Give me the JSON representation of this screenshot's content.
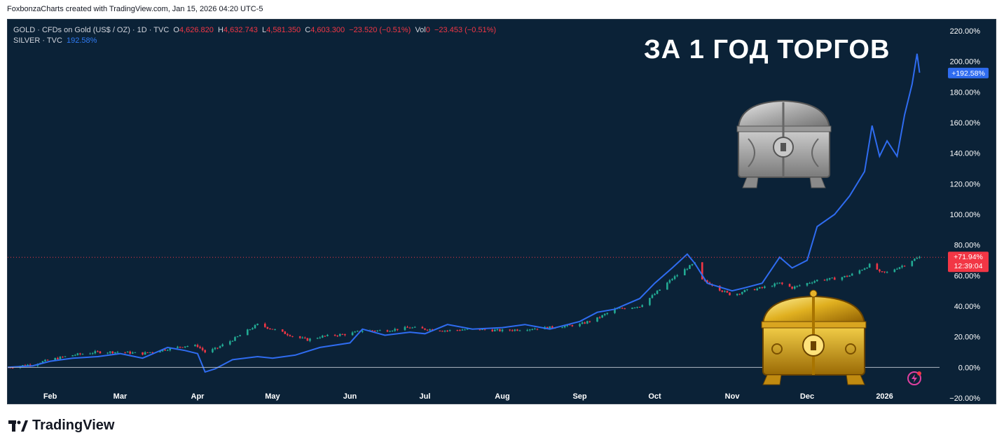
{
  "attribution": "FoxbonzaCharts created with TradingView.com, Jan 15, 2026 04:20 UTC-5",
  "legend": {
    "gold_symbol": "GOLD · CFDs on Gold (US$ / OZ) · 1D · TVC",
    "o_label": "O",
    "o_value": "4,626.820",
    "h_label": "H",
    "h_value": "4,632.743",
    "l_label": "L",
    "l_value": "4,581.350",
    "c_label": "C",
    "c_value": "4,603.300",
    "change": "−23.520 (−0.51%)",
    "vol_label": "Vol",
    "vol_value": "0",
    "vol_change": "−23.453 (−0.51%)",
    "silver_symbol": "SILVER · TVC",
    "silver_value": "192.58%"
  },
  "headline": "ЗА 1 ГОД ТОРГОВ",
  "brand": "TradingView",
  "colors": {
    "background": "#0b2237",
    "silver_line": "#2f6cf0",
    "candle_up": "#22ab94",
    "candle_down": "#f23645",
    "axis_text": "#ffffff"
  },
  "price_tags": {
    "silver": "+192.58%",
    "gold_pct": "+71.94%",
    "gold_time": "12:39:04"
  },
  "icons": [
    "silver-chest-icon",
    "gold-chest-icon",
    "lightning-icon",
    "tradingview-logo-icon"
  ],
  "chart_data": {
    "type": "line",
    "y_axis_ticks": [
      "220.00%",
      "200.00%",
      "180.00%",
      "160.00%",
      "140.00%",
      "120.00%",
      "100.00%",
      "80.00%",
      "60.00%",
      "40.00%",
      "20.00%",
      "0.00%",
      "−20.00%"
    ],
    "ylim": [
      -20,
      225
    ],
    "x_tick_labels": [
      "Feb",
      "Mar",
      "Apr",
      "May",
      "Jun",
      "Jul",
      "Aug",
      "Sep",
      "Oct",
      "Nov",
      "Dec",
      "2026"
    ],
    "x_tick_dates": [
      "2025-02-01",
      "2025-03-01",
      "2025-04-01",
      "2025-05-01",
      "2025-06-01",
      "2025-07-01",
      "2025-08-01",
      "2025-09-01",
      "2025-10-01",
      "2025-11-01",
      "2025-12-01",
      "2026-01-01"
    ],
    "grid": false,
    "series": [
      {
        "name": "SILVER · TVC",
        "style": "line",
        "x": [
          "2025-01-15",
          "2025-01-25",
          "2025-02-01",
          "2025-02-10",
          "2025-02-20",
          "2025-03-01",
          "2025-03-10",
          "2025-03-20",
          "2025-03-27",
          "2025-04-01",
          "2025-04-04",
          "2025-04-08",
          "2025-04-15",
          "2025-04-25",
          "2025-05-01",
          "2025-05-10",
          "2025-05-20",
          "2025-06-01",
          "2025-06-06",
          "2025-06-15",
          "2025-06-25",
          "2025-07-01",
          "2025-07-10",
          "2025-07-20",
          "2025-08-01",
          "2025-08-10",
          "2025-08-20",
          "2025-09-01",
          "2025-09-08",
          "2025-09-15",
          "2025-09-25",
          "2025-10-01",
          "2025-10-08",
          "2025-10-14",
          "2025-10-17",
          "2025-10-22",
          "2025-10-28",
          "2025-11-01",
          "2025-11-06",
          "2025-11-13",
          "2025-11-20",
          "2025-11-25",
          "2025-12-01",
          "2025-12-05",
          "2025-12-12",
          "2025-12-18",
          "2025-12-24",
          "2025-12-27",
          "2025-12-30",
          "2026-01-02",
          "2026-01-06",
          "2026-01-09",
          "2026-01-12",
          "2026-01-14",
          "2026-01-15"
        ],
        "y": [
          0,
          1,
          4,
          6,
          7,
          9,
          6,
          13,
          11,
          9,
          -3,
          -1,
          5,
          7,
          6,
          8,
          13,
          16,
          25,
          21,
          23,
          22,
          28,
          25,
          26,
          28,
          25,
          30,
          36,
          38,
          45,
          55,
          65,
          74,
          68,
          55,
          52,
          50,
          52,
          55,
          72,
          65,
          70,
          92,
          100,
          112,
          128,
          158,
          138,
          148,
          138,
          165,
          185,
          205,
          192.58
        ]
      },
      {
        "name": "GOLD · CFDs on Gold (US$ / OZ)",
        "style": "candlestick",
        "x": [
          "2025-01-15",
          "2025-01-25",
          "2025-02-01",
          "2025-02-10",
          "2025-02-20",
          "2025-03-01",
          "2025-03-10",
          "2025-03-20",
          "2025-03-27",
          "2025-04-01",
          "2025-04-04",
          "2025-04-08",
          "2025-04-15",
          "2025-04-22",
          "2025-04-25",
          "2025-05-01",
          "2025-05-10",
          "2025-05-15",
          "2025-05-20",
          "2025-06-01",
          "2025-06-06",
          "2025-06-15",
          "2025-06-25",
          "2025-07-01",
          "2025-07-10",
          "2025-07-20",
          "2025-08-01",
          "2025-08-10",
          "2025-08-20",
          "2025-09-01",
          "2025-09-08",
          "2025-09-15",
          "2025-09-25",
          "2025-10-01",
          "2025-10-08",
          "2025-10-14",
          "2025-10-17",
          "2025-10-20",
          "2025-10-24",
          "2025-10-28",
          "2025-11-01",
          "2025-11-06",
          "2025-11-13",
          "2025-11-20",
          "2025-11-25",
          "2025-12-01",
          "2025-12-05",
          "2025-12-12",
          "2025-12-18",
          "2025-12-24",
          "2025-12-27",
          "2025-12-30",
          "2026-01-02",
          "2026-01-06",
          "2026-01-09",
          "2026-01-12",
          "2026-01-15"
        ],
        "y": [
          0,
          2,
          5,
          8,
          10,
          10,
          9,
          12,
          14,
          14,
          10,
          12,
          18,
          25,
          28,
          25,
          20,
          18,
          20,
          22,
          24,
          24,
          26,
          25,
          24,
          25,
          24,
          25,
          26,
          28,
          32,
          38,
          40,
          48,
          58,
          65,
          68,
          57,
          54,
          50,
          47,
          50,
          52,
          55,
          52,
          55,
          57,
          58,
          60,
          65,
          68,
          62,
          62,
          65,
          67,
          70,
          71.94
        ]
      }
    ]
  }
}
